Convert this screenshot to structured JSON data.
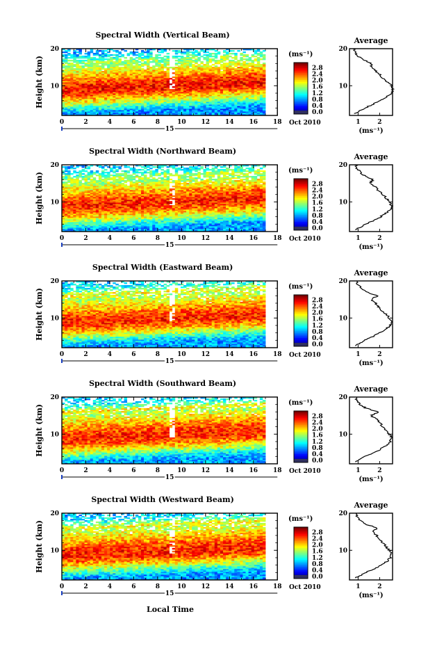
{
  "chart_data": [
    {
      "type": "heatmap",
      "title": "Spectral Width (Vertical Beam)",
      "ylabel": "Height (km)",
      "xlim": [
        0,
        18
      ],
      "ylim": [
        2,
        20
      ],
      "x_ticks": [
        "0",
        "2",
        "4",
        "6",
        "8",
        "10",
        "12",
        "14",
        "16",
        "18"
      ],
      "y_ticks": [
        "20",
        "10"
      ],
      "date_label": "Oct 2010",
      "day_label": "15",
      "colorbar": {
        "unit": "(ms⁻¹)",
        "ticks": [
          "2.8",
          "2.4",
          "2.0",
          "1.6",
          "1.2",
          "0.8",
          "0.4",
          "0.0"
        ],
        "range": [
          0,
          3.0
        ]
      },
      "profile": {
        "title": "Average",
        "xlabel": "(ms⁻¹)",
        "x_ticks": [
          "1",
          "2"
        ],
        "xlim": [
          0.6,
          2.6
        ],
        "heights": [
          2.5,
          3,
          4,
          5,
          6,
          7,
          8,
          9,
          10,
          11,
          12,
          13,
          14,
          15,
          16,
          17,
          18,
          19,
          20
        ],
        "values": [
          0.8,
          1.0,
          1.3,
          1.7,
          2.0,
          2.3,
          2.55,
          2.6,
          2.55,
          2.35,
          2.15,
          2.0,
          1.8,
          1.6,
          1.6,
          1.25,
          1.0,
          0.85,
          0.8
        ]
      }
    },
    {
      "type": "heatmap",
      "title": "Spectral Width (Northward Beam)",
      "ylabel": "Height (km)",
      "xlim": [
        0,
        18
      ],
      "ylim": [
        2,
        20
      ],
      "x_ticks": [
        "0",
        "2",
        "4",
        "6",
        "8",
        "10",
        "12",
        "14",
        "16",
        "18"
      ],
      "y_ticks": [
        "20",
        "10"
      ],
      "date_label": "Oct 2010",
      "day_label": "15",
      "colorbar": {
        "unit": "(ms⁻¹)",
        "ticks": [
          "2.8",
          "2.4",
          "2.0",
          "1.6",
          "1.2",
          "0.8",
          "0.4",
          "0.0"
        ],
        "range": [
          0,
          3.0
        ]
      },
      "profile": {
        "title": "Average",
        "xlabel": "(ms⁻¹)",
        "x_ticks": [
          "1",
          "2"
        ],
        "xlim": [
          0.6,
          2.6
        ],
        "heights": [
          2.5,
          3,
          4,
          5,
          6,
          7,
          8,
          9,
          10,
          11,
          12,
          13,
          14,
          15,
          16,
          17,
          18,
          19,
          20
        ],
        "values": [
          0.85,
          1.05,
          1.35,
          1.75,
          2.05,
          2.3,
          2.5,
          2.55,
          2.45,
          2.3,
          2.15,
          1.95,
          1.8,
          1.55,
          1.7,
          1.3,
          1.1,
          0.95,
          0.9
        ]
      }
    },
    {
      "type": "heatmap",
      "title": "Spectral Width (Eastward Beam)",
      "ylabel": "Height (km)",
      "xlim": [
        0,
        18
      ],
      "ylim": [
        2,
        20
      ],
      "x_ticks": [
        "0",
        "2",
        "4",
        "6",
        "8",
        "10",
        "12",
        "14",
        "16",
        "18"
      ],
      "y_ticks": [
        "20",
        "10"
      ],
      "date_label": "Oct 2010",
      "day_label": "15",
      "colorbar": {
        "unit": "(ms⁻¹)",
        "ticks": [
          "2.8",
          "2.4",
          "2.0",
          "1.6",
          "1.2",
          "0.8",
          "0.4",
          "0.0"
        ],
        "range": [
          0,
          3.0
        ]
      },
      "profile": {
        "title": "Average",
        "xlabel": "(ms⁻¹)",
        "x_ticks": [
          "1",
          "2"
        ],
        "xlim": [
          0.6,
          2.6
        ],
        "heights": [
          2.5,
          3,
          4,
          5,
          6,
          7,
          8,
          9,
          10,
          11,
          12,
          13,
          14,
          15,
          16,
          17,
          18,
          19,
          20
        ],
        "values": [
          0.85,
          1.0,
          1.3,
          1.7,
          2.0,
          2.3,
          2.5,
          2.55,
          2.45,
          2.3,
          2.1,
          1.95,
          1.8,
          1.6,
          1.9,
          1.4,
          1.15,
          1.0,
          0.9
        ]
      }
    },
    {
      "type": "heatmap",
      "title": "Spectral Width (Southward Beam)",
      "ylabel": "Height (km)",
      "xlim": [
        0,
        18
      ],
      "ylim": [
        2,
        20
      ],
      "x_ticks": [
        "0",
        "2",
        "4",
        "6",
        "8",
        "10",
        "12",
        "14",
        "16",
        "18"
      ],
      "y_ticks": [
        "20",
        "10"
      ],
      "date_label": "Oct 2010",
      "day_label": "15",
      "colorbar": {
        "unit": "(ms⁻¹)",
        "ticks": [
          "2.8",
          "2.4",
          "2.0",
          "1.6",
          "1.2",
          "0.8",
          "0.4",
          "0.0"
        ],
        "range": [
          0,
          3.0
        ]
      },
      "profile": {
        "title": "Average",
        "xlabel": "(ms⁻¹)",
        "x_ticks": [
          "1",
          "2"
        ],
        "xlim": [
          0.6,
          2.6
        ],
        "heights": [
          2.5,
          3,
          4,
          5,
          6,
          7,
          8,
          9,
          10,
          11,
          12,
          13,
          14,
          15,
          16,
          17,
          18,
          19,
          20
        ],
        "values": [
          0.85,
          1.05,
          1.35,
          1.75,
          2.05,
          2.35,
          2.5,
          2.55,
          2.45,
          2.3,
          2.15,
          2.0,
          1.85,
          1.6,
          1.95,
          1.35,
          1.1,
          0.95,
          0.9
        ]
      }
    },
    {
      "type": "heatmap",
      "title": "Spectral Width (Westward Beam)",
      "ylabel": "Height (km)",
      "xlabel": "Local Time",
      "xlim": [
        0,
        18
      ],
      "ylim": [
        2,
        20
      ],
      "x_ticks": [
        "0",
        "2",
        "4",
        "6",
        "8",
        "10",
        "12",
        "14",
        "16",
        "18"
      ],
      "y_ticks": [
        "20",
        "10"
      ],
      "date_label": "Oct 2010",
      "day_label": "15",
      "colorbar": {
        "unit": "(ms⁻¹)",
        "ticks": [
          "2.8",
          "2.4",
          "2.0",
          "1.6",
          "1.2",
          "0.8",
          "0.4",
          "0.0"
        ],
        "range": [
          0,
          3.0
        ]
      },
      "profile": {
        "title": "Average",
        "xlabel": "(ms⁻¹)",
        "x_ticks": [
          "1",
          "2"
        ],
        "xlim": [
          0.6,
          2.6
        ],
        "heights": [
          2.5,
          3,
          4,
          5,
          6,
          7,
          8,
          9,
          10,
          11,
          12,
          13,
          14,
          15,
          16,
          17,
          18,
          19,
          20
        ],
        "values": [
          0.85,
          1.05,
          1.35,
          1.75,
          2.05,
          2.35,
          2.5,
          2.55,
          2.45,
          2.3,
          2.15,
          2.0,
          1.85,
          1.65,
          1.9,
          1.35,
          1.1,
          0.95,
          0.9
        ]
      }
    }
  ]
}
